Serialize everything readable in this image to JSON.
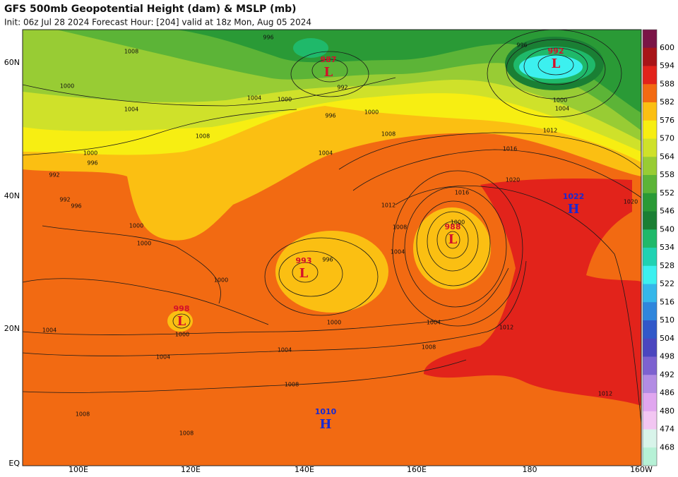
{
  "header": {
    "title": "GFS 500mb Geopotential Height (dam) & MSLP (mb)",
    "subtitle": "Init: 06z Jul 28 2024   Forecast Hour: [204]   valid at 18z Mon, Aug 05 2024"
  },
  "lat_labels": [
    "60N",
    "40N",
    "20N",
    "EQ"
  ],
  "lon_labels": [
    "100E",
    "120E",
    "140E",
    "160E",
    "180",
    "160W"
  ],
  "colorbar": {
    "labels": [
      600,
      594,
      588,
      582,
      576,
      570,
      564,
      558,
      552,
      546,
      540,
      534,
      528,
      522,
      516,
      510,
      504,
      498,
      492,
      486,
      480,
      474,
      468
    ],
    "colors": [
      "#7a1446",
      "#a81418",
      "#e2231b",
      "#f26a12",
      "#fbbf12",
      "#f7ee12",
      "#cfe12a",
      "#98cc34",
      "#5cb437",
      "#2a9a36",
      "#1a7f34",
      "#1fb96a",
      "#20d2b2",
      "#3cf0ef",
      "#35b7ea",
      "#2f86dc",
      "#3158c9",
      "#4b46bf",
      "#7d62d0",
      "#b28ce3",
      "#e0a6ef",
      "#f2c6f2",
      "#d8f4ea",
      "#b6f1d6"
    ]
  },
  "centers": [
    {
      "type": "L",
      "value": 987
    },
    {
      "type": "L",
      "value": 992
    },
    {
      "type": "L",
      "value": 993
    },
    {
      "type": "L",
      "value": 988
    },
    {
      "type": "L",
      "value": 998
    },
    {
      "type": "H",
      "value": 1022
    },
    {
      "type": "H",
      "value": 1010
    }
  ],
  "isobar_labels": [
    1008,
    1000,
    1004,
    1008,
    1000,
    996,
    992,
    992,
    996,
    1000,
    1000,
    1000,
    1004,
    1004,
    1004,
    1008,
    1008,
    1008,
    1000,
    1004,
    1008,
    1012,
    1012,
    1016,
    1012,
    1008,
    1004,
    1016,
    1020,
    1020,
    1012,
    1004,
    1000,
    996,
    1004,
    1008,
    1000,
    996,
    992,
    1004,
    1000,
    996,
    1000,
    996,
    1000
  ]
}
